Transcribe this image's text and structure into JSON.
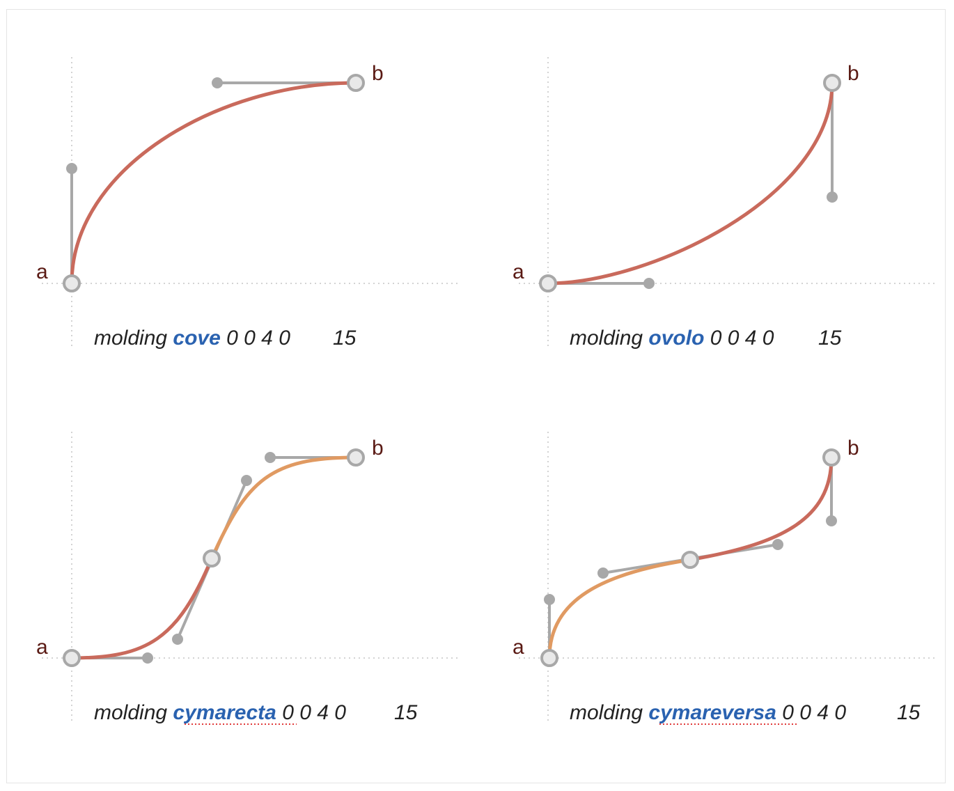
{
  "panels": [
    {
      "id": "cove",
      "caption": {
        "prefix": "molding",
        "keyword": "cove",
        "params": "0 0 4 0",
        "count": "15"
      },
      "point_a": "a",
      "point_b": "b"
    },
    {
      "id": "ovolo",
      "caption": {
        "prefix": "molding",
        "keyword": "ovolo",
        "params": "0 0 4 0",
        "count": "15"
      },
      "point_a": "a",
      "point_b": "b"
    },
    {
      "id": "cymarecta",
      "caption": {
        "prefix": "molding",
        "keyword": "cymarecta",
        "params": "0 0 4 0",
        "count": "15"
      },
      "point_a": "a",
      "point_b": "b"
    },
    {
      "id": "cymareversa",
      "caption": {
        "prefix": "molding",
        "keyword": "cymareversa",
        "params": "0 0 4 0",
        "count": "15"
      },
      "point_a": "a",
      "point_b": "b"
    }
  ],
  "colors": {
    "curve_primary": "#c96a5c",
    "curve_secondary": "#e09a62",
    "handle": "#a8a8a8",
    "keyword": "#2a62b0",
    "point_label": "#5a1a14"
  }
}
